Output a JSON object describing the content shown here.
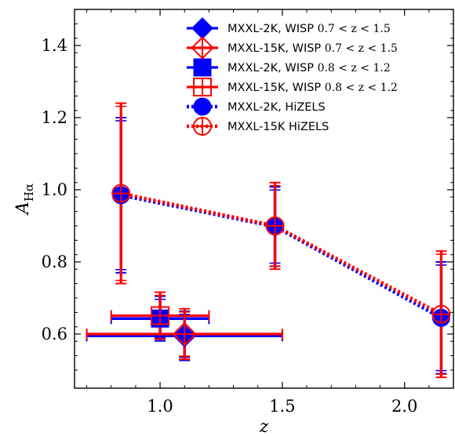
{
  "chart_data": {
    "type": "scatter",
    "xlabel": "z",
    "ylabel": "A",
    "ylabel_sub": "Hα",
    "xlim": [
      0.65,
      2.2
    ],
    "ylim": [
      0.45,
      1.5
    ],
    "xticks": [
      1.0,
      1.5,
      2.0
    ],
    "xtick_labels": [
      "1.0",
      "1.5",
      "2.0"
    ],
    "yticks": [
      0.6,
      0.8,
      1.0,
      1.2,
      1.4
    ],
    "ytick_labels": [
      "0.6",
      "0.8",
      "1.0",
      "1.2",
      "1.4"
    ],
    "legend_position": "top-right",
    "colors": {
      "mxxl2k": "#0000ff",
      "mxxl15k": "#ff0000"
    },
    "series": [
      {
        "name": "MXXL-2K, WISP ",
        "name_math": "0.7 < z < 1.5",
        "marker": "diamond",
        "style": "filled",
        "color": "#0000ff",
        "points": [
          {
            "x": 1.1,
            "y": 0.595,
            "xerr": 0.4,
            "yerr": 0.068
          }
        ]
      },
      {
        "name": "MXXL-15K, WISP ",
        "name_math": "0.7 < z < 1.5",
        "marker": "diamond",
        "style": "open-plus",
        "color": "#ff0000",
        "points": [
          {
            "x": 1.1,
            "y": 0.6,
            "xerr": 0.4,
            "yerr": 0.07
          }
        ]
      },
      {
        "name": "MXXL-2K, WISP ",
        "name_math": "0.8 < z < 1.2",
        "marker": "square",
        "style": "filled",
        "color": "#0000ff",
        "points": [
          {
            "x": 1.0,
            "y": 0.643,
            "xerr": 0.2,
            "yerr": 0.062
          }
        ]
      },
      {
        "name": "MXXL-15K, WISP ",
        "name_math": "0.8 < z < 1.2",
        "marker": "square",
        "style": "open-plus",
        "color": "#ff0000",
        "points": [
          {
            "x": 1.0,
            "y": 0.651,
            "xerr": 0.2,
            "yerr": 0.065
          }
        ]
      },
      {
        "name": "MXXL-2K, HiZELS",
        "marker": "circle",
        "style": "filled",
        "line": "dotted",
        "color": "#0000ff",
        "points": [
          {
            "x": 0.84,
            "y": 0.985,
            "yerr": 0.215
          },
          {
            "x": 1.47,
            "y": 0.898,
            "yerr": 0.11
          },
          {
            "x": 2.15,
            "y": 0.645,
            "yerr": 0.155
          }
        ]
      },
      {
        "name": "MXXL-15K HiZELS",
        "marker": "circle",
        "style": "open-plus",
        "line": "dotted",
        "color": "#ff0000",
        "points": [
          {
            "x": 0.84,
            "y": 0.99,
            "yerr": 0.25
          },
          {
            "x": 1.47,
            "y": 0.9,
            "yerr": 0.12
          },
          {
            "x": 2.15,
            "y": 0.655,
            "yerr": 0.175
          }
        ]
      }
    ]
  }
}
